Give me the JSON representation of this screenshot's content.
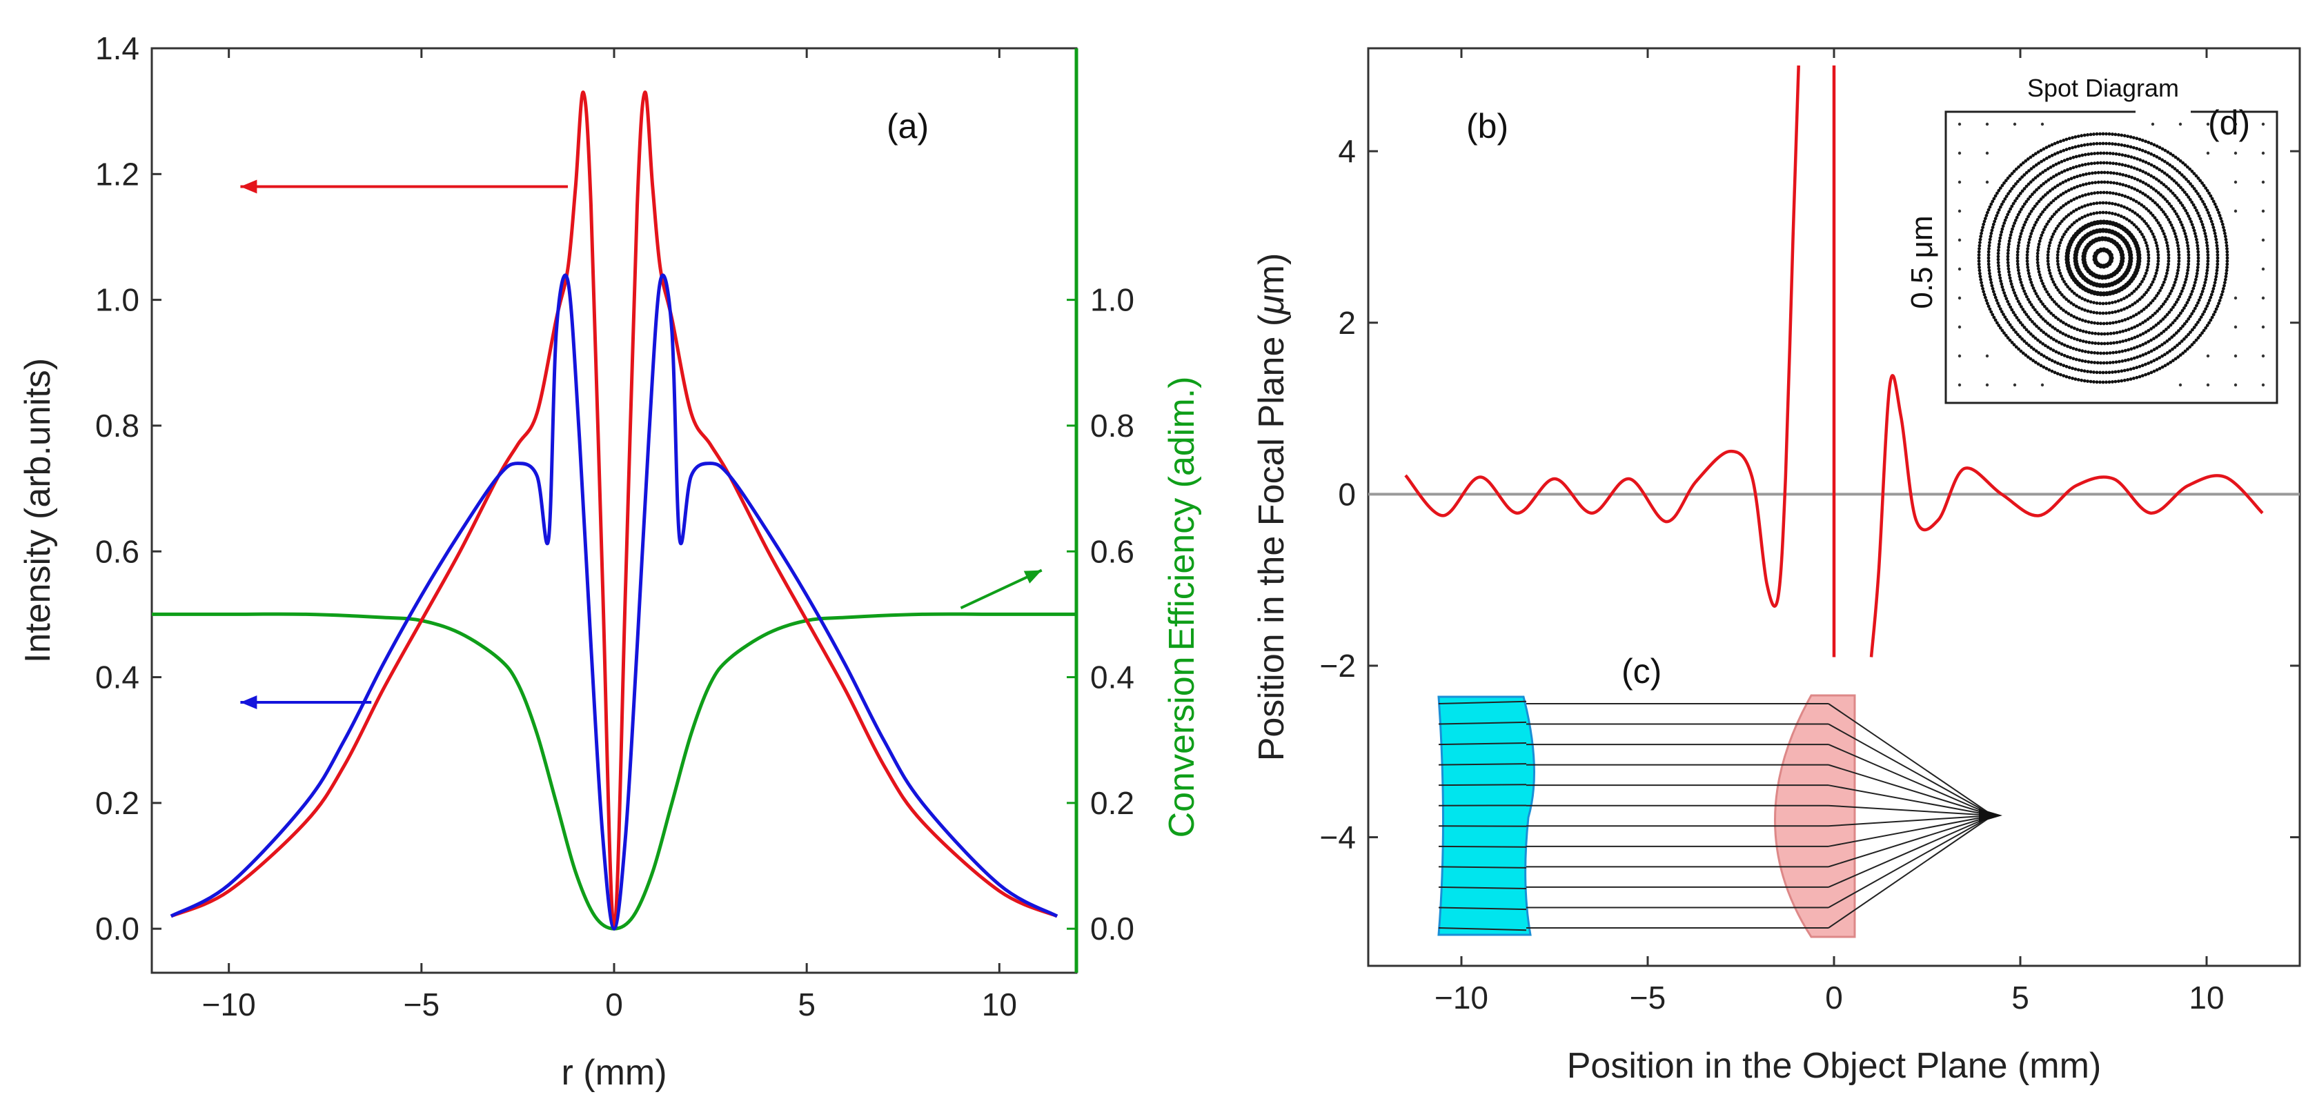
{
  "colors": {
    "red": "#e4141b",
    "blue": "#1414dc",
    "green": "#0f9e19",
    "gray": "#9a9a9a",
    "cyan": "#00e5ee",
    "pink": "#f4b4b4",
    "ink": "#222222"
  },
  "chart_data": [
    {
      "id": "a",
      "panel_label": "(a)",
      "type": "line",
      "xlabel": "r (mm)",
      "ylabel": "Intensity (arb.units)",
      "y2label_part1": "Conversion",
      "y2label_part2": "Efficiency (adim.)",
      "xlim": [
        -12,
        12
      ],
      "ylim": [
        -0.07,
        1.4
      ],
      "y2lim": [
        -0.07,
        1.4
      ],
      "xticks": [
        -10,
        -5,
        0,
        5,
        10
      ],
      "xtick_labels": [
        "−10",
        "−5",
        "0",
        "5",
        "10"
      ],
      "yticks": [
        0.0,
        0.2,
        0.4,
        0.6,
        0.8,
        1.0,
        1.2,
        1.4
      ],
      "ytick_labels": [
        "0.0",
        "0.2",
        "0.4",
        "0.6",
        "0.8",
        "1.0",
        "1.2",
        "1.4"
      ],
      "y2ticks": [
        0.0,
        0.2,
        0.4,
        0.6,
        0.8,
        1.0
      ],
      "y2tick_labels": [
        "0.0",
        "0.2",
        "0.4",
        "0.6",
        "0.8",
        "1.0"
      ],
      "series": [
        {
          "name": "red intensity",
          "color": "#e4141b",
          "x": [
            -11.5,
            -10,
            -8,
            -7,
            -6,
            -5,
            -4,
            -3,
            -2.5,
            -2,
            -1.5,
            -1.2,
            -1.0,
            -0.8,
            -0.6,
            -0.3,
            0,
            0.3,
            0.6,
            0.8,
            1.0,
            1.2,
            1.5,
            2,
            2.5,
            3,
            4,
            5,
            6,
            7,
            8,
            10,
            11.5
          ],
          "y": [
            0.02,
            0.06,
            0.17,
            0.26,
            0.38,
            0.49,
            0.6,
            0.72,
            0.77,
            0.82,
            0.97,
            1.05,
            1.18,
            1.33,
            1.15,
            0.55,
            0.0,
            0.55,
            1.15,
            1.33,
            1.18,
            1.05,
            0.97,
            0.82,
            0.77,
            0.72,
            0.6,
            0.49,
            0.38,
            0.26,
            0.17,
            0.06,
            0.02
          ]
        },
        {
          "name": "blue intensity",
          "color": "#1414dc",
          "x": [
            -11.5,
            -10,
            -8,
            -7,
            -6,
            -5,
            -4,
            -3,
            -2.5,
            -2,
            -1.7,
            -1.5,
            -1.2,
            -0.9,
            -0.6,
            -0.3,
            0,
            0.3,
            0.6,
            0.9,
            1.2,
            1.5,
            1.7,
            2,
            2.5,
            3,
            4,
            5,
            6,
            7,
            8,
            10,
            11.5
          ],
          "y": [
            0.02,
            0.07,
            0.2,
            0.3,
            0.42,
            0.53,
            0.63,
            0.72,
            0.74,
            0.72,
            0.62,
            0.95,
            1.03,
            0.78,
            0.45,
            0.15,
            0.0,
            0.15,
            0.45,
            0.78,
            1.03,
            0.95,
            0.62,
            0.72,
            0.74,
            0.72,
            0.63,
            0.53,
            0.42,
            0.3,
            0.2,
            0.07,
            0.02
          ]
        },
        {
          "name": "green conversion efficiency",
          "color": "#0f9e19",
          "axis": "right",
          "x": [
            -12,
            -10,
            -8,
            -6,
            -5,
            -4,
            -3,
            -2.5,
            -2,
            -1.5,
            -1,
            -0.5,
            0,
            0.5,
            1,
            1.5,
            2,
            2.5,
            3,
            4,
            5,
            6,
            8,
            10,
            12
          ],
          "y": [
            0.5,
            0.5,
            0.5,
            0.495,
            0.49,
            0.47,
            0.43,
            0.39,
            0.31,
            0.2,
            0.09,
            0.02,
            0.0,
            0.02,
            0.09,
            0.2,
            0.31,
            0.39,
            0.43,
            0.47,
            0.49,
            0.495,
            0.5,
            0.5,
            0.5
          ]
        }
      ],
      "annotations": [
        {
          "type": "arrow",
          "color": "#e4141b",
          "from": [
            -1.2,
            1.18
          ],
          "to": [
            -9.7,
            1.18
          ]
        },
        {
          "type": "arrow",
          "color": "#1414dc",
          "from": [
            -6.3,
            0.36
          ],
          "to": [
            -9.7,
            0.36
          ]
        },
        {
          "type": "arrow",
          "color": "#0f9e19",
          "from": [
            9.0,
            0.51
          ],
          "to": [
            11.1,
            0.57
          ]
        }
      ]
    },
    {
      "id": "b",
      "panel_label": "(b)",
      "type": "line",
      "xlabel": "Position in the Object Plane (mm)",
      "ylabel_part1": "Position in the Focal Plane (",
      "ylabel_mu": "μ",
      "ylabel_part2": "m)",
      "xlim": [
        -12.5,
        12.5
      ],
      "ylim": [
        -5.5,
        5.2
      ],
      "xticks": [
        -10,
        -5,
        0,
        5,
        10
      ],
      "xtick_labels": [
        "−10",
        "−5",
        "0",
        "5",
        "10"
      ],
      "yticks": [
        -4,
        -2,
        0,
        2,
        4
      ],
      "ytick_labels": [
        "−4",
        "−2",
        "0",
        "2",
        "4"
      ],
      "series": [
        {
          "name": "left branch",
          "color": "#e4141b",
          "x": [
            -11.5,
            -10.5,
            -9.5,
            -8.5,
            -7.5,
            -6.5,
            -5.5,
            -4.5,
            -3.7,
            -2.8,
            -2.2,
            -1.8,
            -1.5,
            -1.3,
            -1.1,
            -0.95
          ],
          "y": [
            0.22,
            -0.25,
            0.2,
            -0.22,
            0.18,
            -0.22,
            0.18,
            -0.32,
            0.15,
            0.5,
            0.2,
            -1.05,
            -1.2,
            0.2,
            3.0,
            5.0
          ]
        },
        {
          "name": "center line",
          "color": "#e4141b",
          "x": [
            0.0,
            0.0
          ],
          "y": [
            5.0,
            -1.9
          ]
        },
        {
          "name": "right branch",
          "color": "#e4141b",
          "x": [
            1.0,
            1.2,
            1.5,
            1.8,
            2.2,
            2.8,
            3.5,
            4.5,
            5.5,
            6.5,
            7.5,
            8.5,
            9.5,
            10.5,
            11.5
          ],
          "y": [
            -1.9,
            -0.9,
            1.28,
            0.9,
            -0.3,
            -0.3,
            0.3,
            0.0,
            -0.25,
            0.1,
            0.18,
            -0.22,
            0.1,
            0.2,
            -0.22
          ]
        },
        {
          "name": "zero line",
          "color": "#9a9a9a",
          "x": [
            -12.5,
            12.5
          ],
          "y": [
            0.0,
            0.0
          ]
        }
      ]
    }
  ],
  "inset_c": {
    "label": "(c)"
  },
  "inset_d": {
    "title": "Spot Diagram",
    "label": "(d)",
    "scale": "0.5 μm"
  }
}
